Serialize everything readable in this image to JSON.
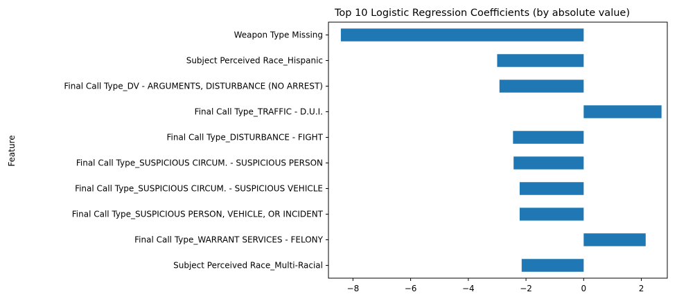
{
  "chart_data": {
    "type": "bar",
    "orientation": "horizontal",
    "title": "Top 10 Logistic Regression Coefficients (by absolute value)",
    "xlabel": "",
    "ylabel": "Feature",
    "categories": [
      "Weapon Type Missing",
      "Subject Perceived Race_Hispanic",
      "Final Call Type_DV - ARGUMENTS, DISTURBANCE (NO ARREST)",
      "Final Call Type_TRAFFIC - D.U.I.",
      "Final Call Type_DISTURBANCE - FIGHT",
      "Final Call Type_SUSPICIOUS CIRCUM. - SUSPICIOUS PERSON",
      "Final Call Type_SUSPICIOUS CIRCUM. - SUSPICIOUS VEHICLE",
      "Final Call Type_SUSPICIOUS PERSON, VEHICLE, OR INCIDENT",
      "Final Call Type_WARRANT SERVICES - FELONY",
      "Subject Perceived Race_Multi-Racial"
    ],
    "values": [
      -8.42,
      -3.0,
      -2.92,
      2.7,
      -2.45,
      -2.43,
      -2.22,
      -2.22,
      2.15,
      -2.15
    ],
    "xlim": [
      -8.85,
      2.9
    ],
    "xticks": [
      -8,
      -6,
      -4,
      -2,
      0,
      2
    ],
    "xtick_labels": [
      "−8",
      "−6",
      "−4",
      "−2",
      "0",
      "2"
    ],
    "bar_color": "#1f77b4",
    "grid": false,
    "legend": "none"
  }
}
